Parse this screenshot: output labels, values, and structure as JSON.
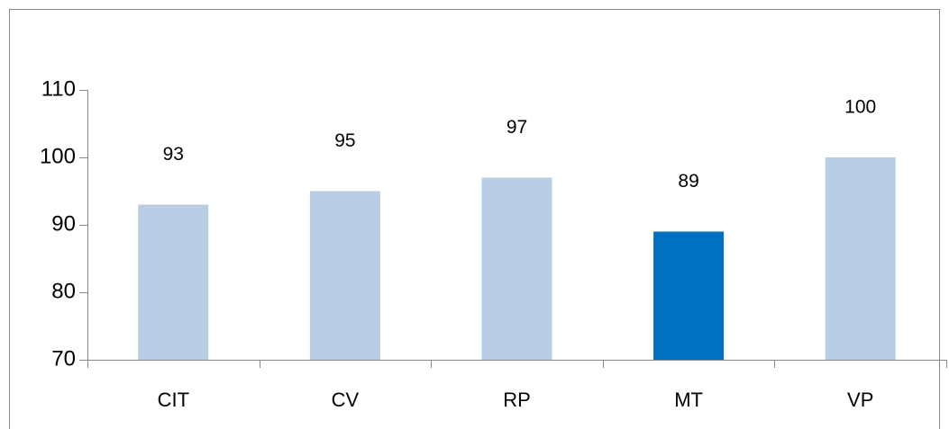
{
  "chart_data": {
    "type": "bar",
    "categories": [
      "CIT",
      "CV",
      "RP",
      "MT",
      "VP"
    ],
    "values": [
      93,
      95,
      97,
      89,
      100
    ],
    "colors": [
      "#b9cde5",
      "#b9cde5",
      "#b9cde5",
      "#0070c0",
      "#b9cde5"
    ],
    "ylim": [
      70,
      110
    ],
    "yticks": [
      70,
      80,
      90,
      100,
      110
    ],
    "grid": false
  }
}
